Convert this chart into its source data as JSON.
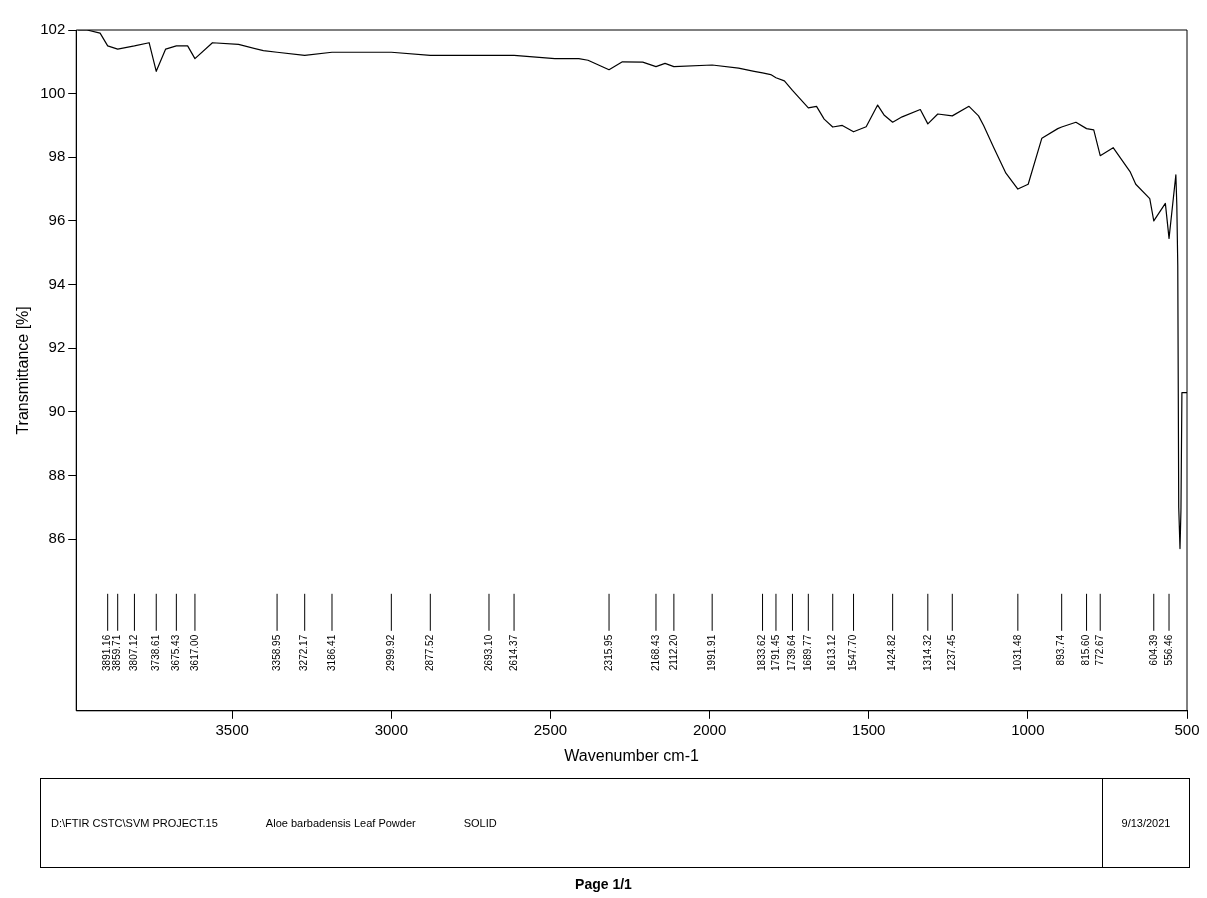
{
  "chart_data": {
    "type": "line",
    "xlabel": "Wavenumber cm-1",
    "ylabel": "Transmittance [%]",
    "xlim": [
      3990,
      500
    ],
    "xticks": [
      3500,
      3000,
      2500,
      2000,
      1500,
      1000,
      500
    ],
    "ylim": [
      80.6,
      102
    ],
    "yticks": [
      86,
      88,
      90,
      92,
      94,
      96,
      98,
      100,
      102
    ],
    "grid": false,
    "legend": false,
    "marker": "none",
    "line_style": "solid",
    "series": [
      {
        "color": "#000000",
        "x": [
          3985,
          3956,
          3915,
          3891.16,
          3859.71,
          3807.12,
          3761,
          3738.61,
          3709,
          3675.43,
          3640,
          3617.0,
          3562,
          3480,
          3402,
          3358.95,
          3272.17,
          3186.41,
          3148,
          2999.92,
          2877.52,
          2693.1,
          2614.37,
          2486,
          2411,
          2382,
          2315.95,
          2274,
          2210,
          2168.43,
          2140,
          2112.2,
          1991.91,
          1909,
          1860,
          1833.62,
          1808,
          1791.45,
          1765,
          1739.64,
          1689.77,
          1664,
          1640,
          1613.12,
          1583,
          1547.7,
          1508,
          1472,
          1452,
          1424.82,
          1395,
          1338,
          1314.32,
          1283,
          1237.45,
          1185,
          1155,
          1139,
          1107,
          1069,
          1031.48,
          999,
          956,
          906,
          893.74,
          849,
          815.6,
          793,
          772.67,
          732,
          679,
          661,
          617,
          604.39,
          568,
          556.46,
          535,
          532,
          529,
          526,
          522,
          519,
          516,
          500
        ],
        "values": [
          102.0,
          102.0,
          101.9,
          101.5,
          101.4,
          101.5,
          101.6,
          100.7,
          101.4,
          101.5,
          101.5,
          101.1,
          101.6,
          101.55,
          101.35,
          101.3,
          101.2,
          101.3,
          101.3,
          101.3,
          101.2,
          101.2,
          101.2,
          101.1,
          101.1,
          101.05,
          100.75,
          101.0,
          100.99,
          100.85,
          100.95,
          100.85,
          100.9,
          100.8,
          100.7,
          100.65,
          100.6,
          100.5,
          100.4,
          100.1,
          99.55,
          99.6,
          99.2,
          98.95,
          99.0,
          98.8,
          98.96,
          99.64,
          99.33,
          99.1,
          99.27,
          99.5,
          99.05,
          99.36,
          99.3,
          99.6,
          99.3,
          99.0,
          98.3,
          97.5,
          97.0,
          97.15,
          98.6,
          98.9,
          98.95,
          99.1,
          98.9,
          98.86,
          98.05,
          98.3,
          97.55,
          97.15,
          96.7,
          96.0,
          96.55,
          95.45,
          97.45,
          96.5,
          94.6,
          87.0,
          85.7,
          86.9,
          90.6,
          90.6
        ]
      }
    ],
    "annotations": [
      {
        "text": "3891.16",
        "x": 3891.16
      },
      {
        "text": "3859.71",
        "x": 3859.71
      },
      {
        "text": "3807.12",
        "x": 3807.12
      },
      {
        "text": "3738.61",
        "x": 3738.61
      },
      {
        "text": "3675.43",
        "x": 3675.43
      },
      {
        "text": "3617.00",
        "x": 3617.0
      },
      {
        "text": "3358.95",
        "x": 3358.95
      },
      {
        "text": "3272.17",
        "x": 3272.17
      },
      {
        "text": "3186.41",
        "x": 3186.41
      },
      {
        "text": "2999.92",
        "x": 2999.92
      },
      {
        "text": "2877.52",
        "x": 2877.52
      },
      {
        "text": "2693.10",
        "x": 2693.1
      },
      {
        "text": "2614.37",
        "x": 2614.37
      },
      {
        "text": "2315.95",
        "x": 2315.95
      },
      {
        "text": "2168.43",
        "x": 2168.43
      },
      {
        "text": "2112.20",
        "x": 2112.2
      },
      {
        "text": "1991.91",
        "x": 1991.91
      },
      {
        "text": "1833.62",
        "x": 1833.62
      },
      {
        "text": "1791.45",
        "x": 1791.45
      },
      {
        "text": "1739.64",
        "x": 1739.64
      },
      {
        "text": "1689.77",
        "x": 1689.77
      },
      {
        "text": "1613.12",
        "x": 1613.12
      },
      {
        "text": "1547.70",
        "x": 1547.7
      },
      {
        "text": "1424.82",
        "x": 1424.82
      },
      {
        "text": "1314.32",
        "x": 1314.32
      },
      {
        "text": "1237.45",
        "x": 1237.45
      },
      {
        "text": "1031.48",
        "x": 1031.48
      },
      {
        "text": "893.74",
        "x": 893.74
      },
      {
        "text": "815.60",
        "x": 815.6
      },
      {
        "text": "772.67",
        "x": 772.67
      },
      {
        "text": "604.39",
        "x": 604.39
      },
      {
        "text": "556.46",
        "x": 556.46
      },
      "D:\\FTIR CSTC\\SVM PROJECT.15",
      "Aloe barbadensis Leaf Powder",
      "SOLID",
      "9/13/2021",
      "Page 1/1"
    ]
  }
}
